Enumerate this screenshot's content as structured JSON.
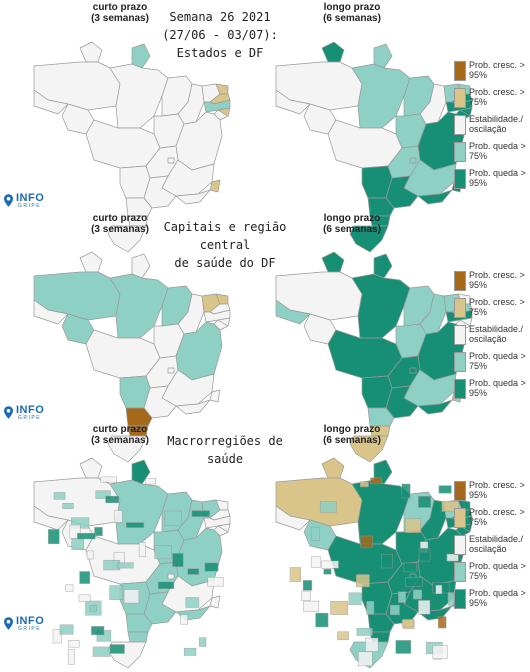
{
  "header": {
    "title_line1": "Semana 26 2021",
    "title_line2": "(27/06 - 03/07):",
    "title_line3": "Estados e DF"
  },
  "panels": [
    {
      "short_label": "curto prazo",
      "short_sub": "(3 semanas)",
      "long_label": "longo prazo",
      "long_sub": "(6 semanas)"
    },
    {
      "short_label": "curto prazo",
      "short_sub": "(3 semanas)",
      "long_label": "longo prazo",
      "long_sub": "(6 semanas)",
      "title_line1": "Capitais e região central",
      "title_line2": "de saúde do DF"
    },
    {
      "short_label": "curto prazo",
      "short_sub": "(3 semanas)",
      "long_label": "longo prazo",
      "long_sub": "(6 semanas)",
      "title_line1": "Macrorregiões de saúde"
    }
  ],
  "legend": {
    "items": [
      {
        "label": "Prob. cresc. > 95%",
        "color": "#a5691c"
      },
      {
        "label": "Prob. cresc. > 75%",
        "color": "#d9c58a"
      },
      {
        "label": "Estabilidade./ oscilação",
        "color": "#f4f4f4"
      },
      {
        "label": "Prob. queda > 75%",
        "color": "#8fd0c4"
      },
      {
        "label": "Prob. queda > 95%",
        "color": "#168f75"
      }
    ]
  },
  "logo": {
    "text": "INFO",
    "subtext": "GRIPE"
  },
  "colors": {
    "grow95": "#a5691c",
    "grow75": "#d9c58a",
    "stable": "#f4f4f4",
    "drop75": "#8fd0c4",
    "drop95": "#168f75",
    "border": "#9a9a9a"
  }
}
